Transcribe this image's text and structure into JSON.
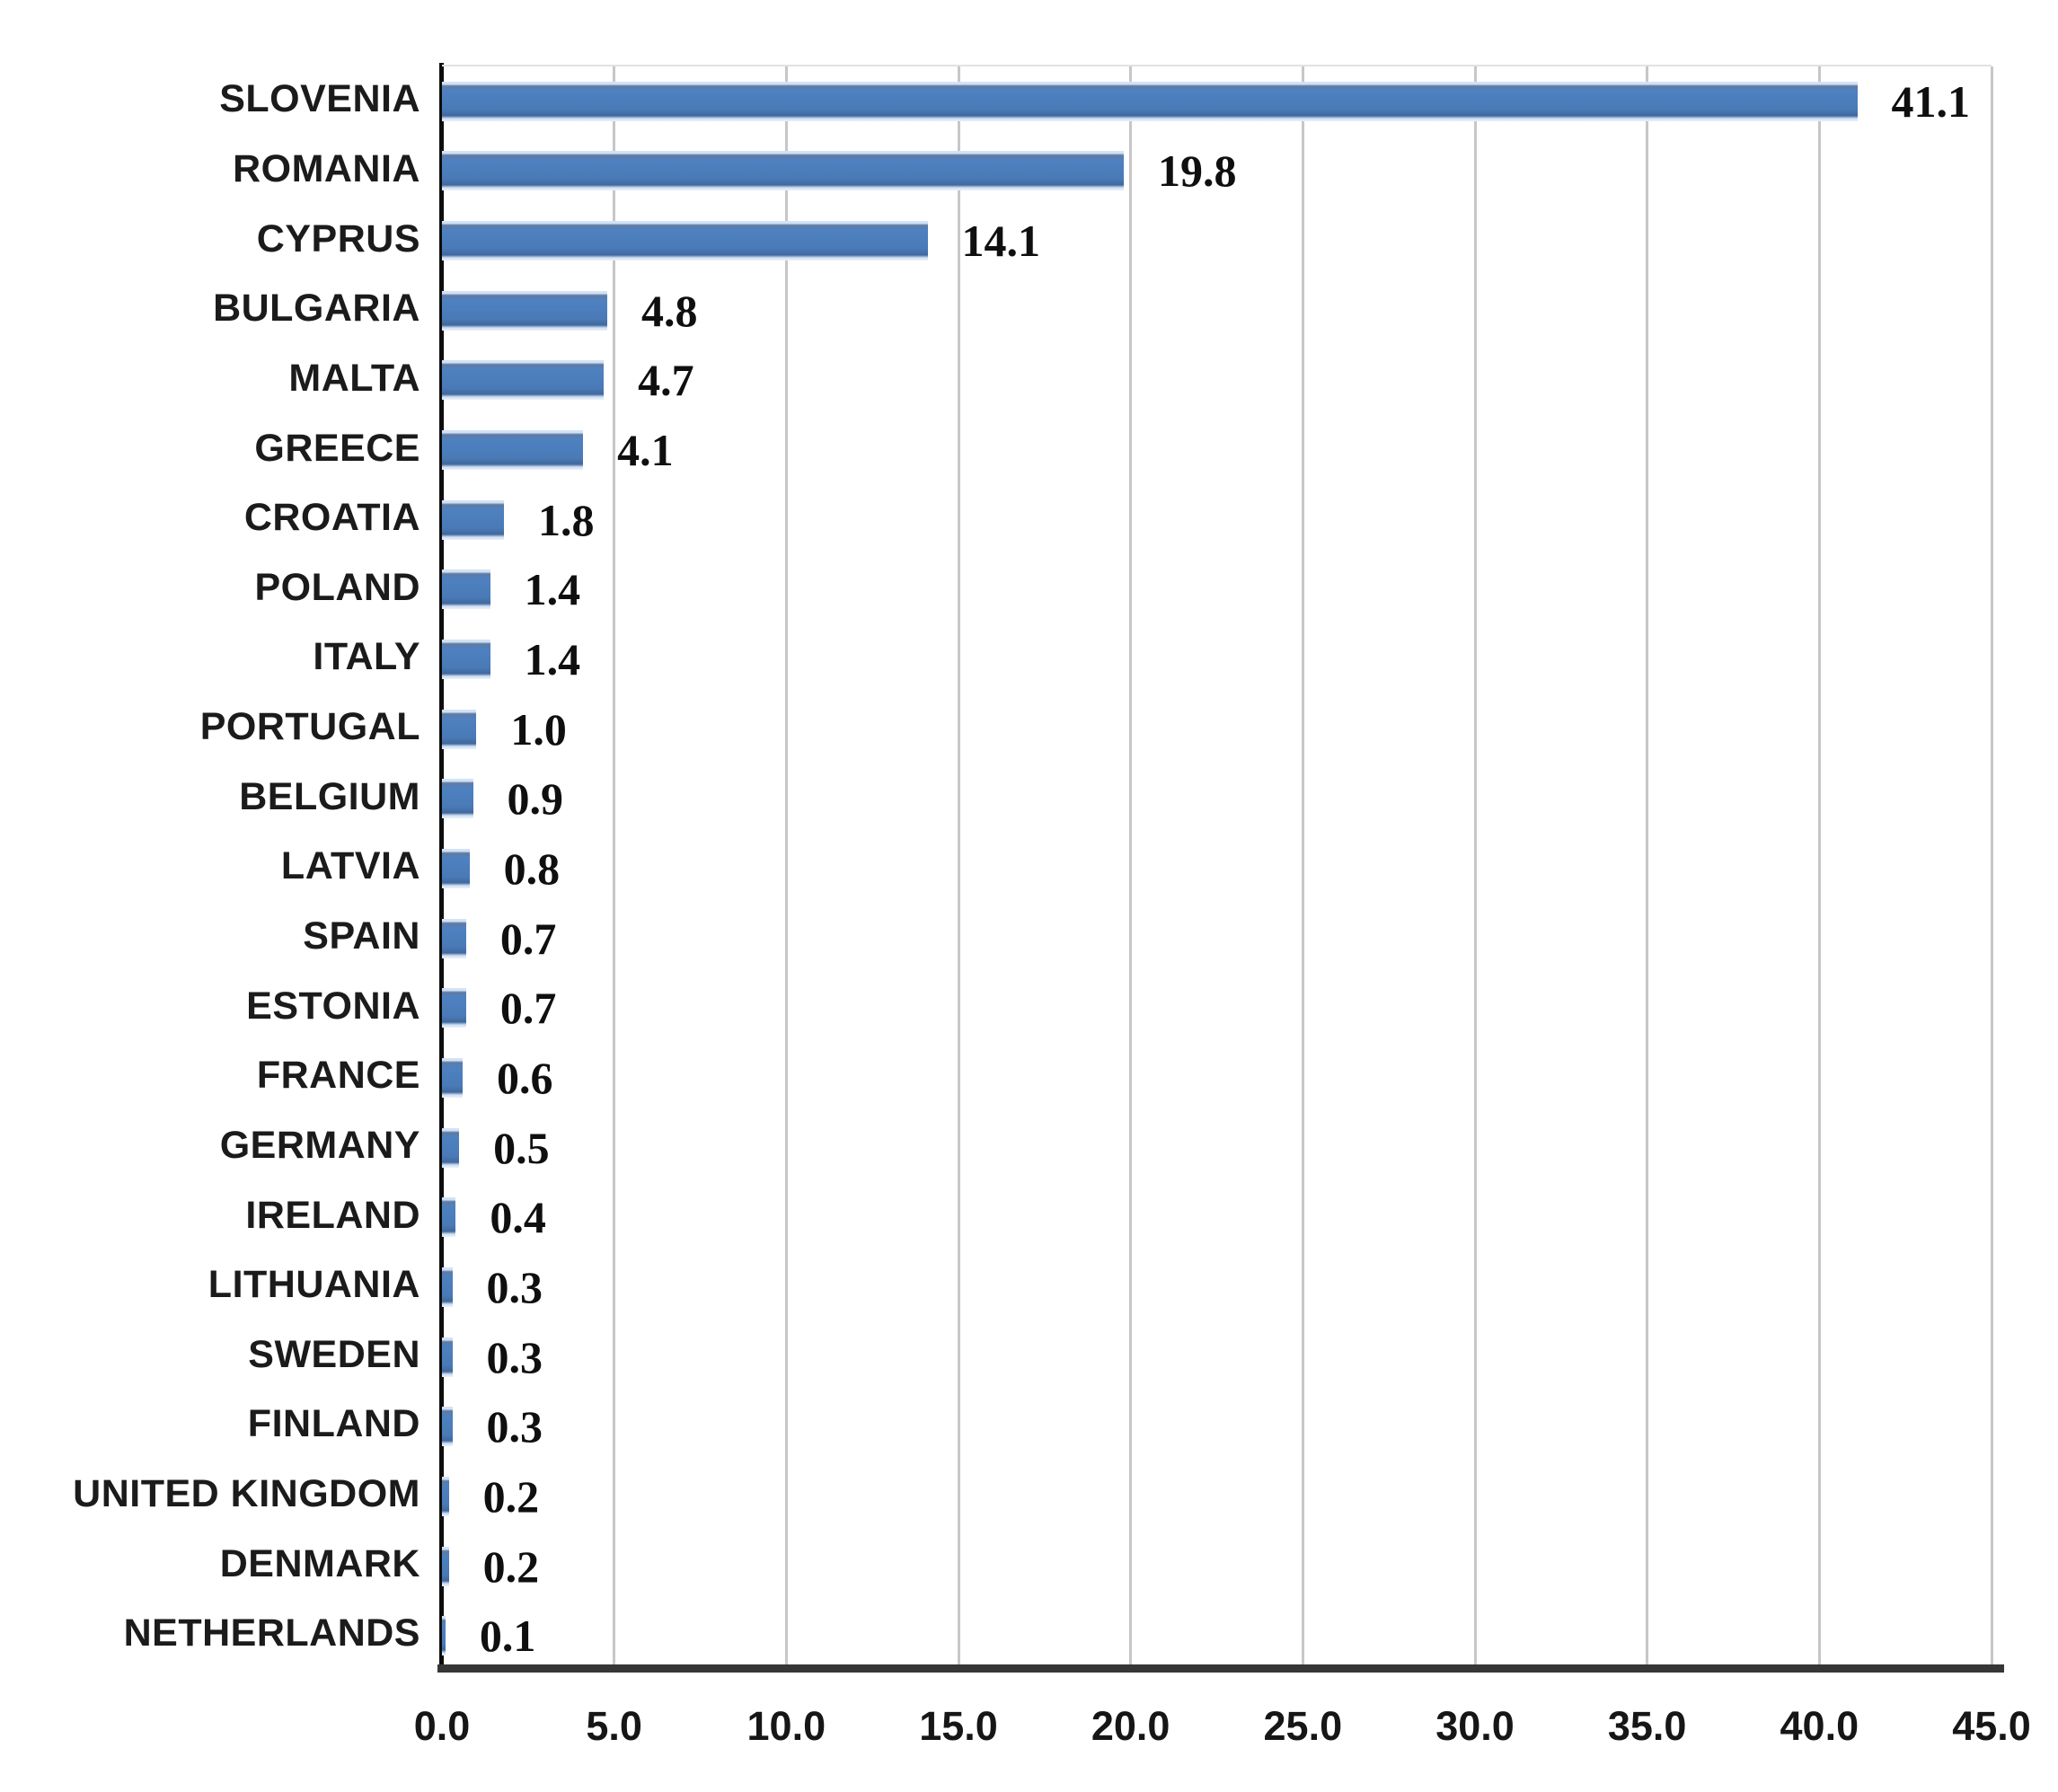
{
  "chart_data": {
    "type": "bar",
    "orientation": "horizontal",
    "title": "",
    "xlabel": "",
    "ylabel": "",
    "xlim": [
      0,
      45
    ],
    "grid": "vertical-only",
    "gridline_step": 5,
    "legend": "none",
    "bar_color": "#4a7ab8",
    "categories": [
      "SLOVENIA",
      "ROMANIA",
      "CYPRUS",
      "BULGARIA",
      "MALTA",
      "GREECE",
      "CROATIA",
      "POLAND",
      "ITALY",
      "PORTUGAL",
      "BELGIUM",
      "LATVIA",
      "SPAIN",
      "ESTONIA",
      "FRANCE",
      "GERMANY",
      "IRELAND",
      "LITHUANIA",
      "SWEDEN",
      "FINLAND",
      "UNITED KINGDOM",
      "DENMARK",
      "NETHERLANDS"
    ],
    "values": [
      41.1,
      19.8,
      14.1,
      4.8,
      4.7,
      4.1,
      1.8,
      1.4,
      1.4,
      1.0,
      0.9,
      0.8,
      0.7,
      0.7,
      0.6,
      0.5,
      0.4,
      0.3,
      0.3,
      0.3,
      0.2,
      0.2,
      0.1
    ],
    "value_labels": [
      "41.1",
      "19.8",
      "14.1",
      "4.8",
      "4.7",
      "4.1",
      "1.8",
      "1.4",
      "1.4",
      "1.0",
      "0.9",
      "0.8",
      "0.7",
      "0.7",
      "0.6",
      "0.5",
      "0.4",
      "0.3",
      "0.3",
      "0.3",
      "0.2",
      "0.2",
      "0.1"
    ],
    "xticks": [
      "0.0",
      "5.0",
      "10.0",
      "15.0",
      "20.0",
      "25.0",
      "30.0",
      "35.0",
      "40.0",
      "45.0"
    ]
  },
  "colors": {
    "bar_fill": "#4a7ab8",
    "bar_edge_light": "#d3e2f4",
    "bar_edge_dark": "#40699e",
    "gridline": "#c7c7c7",
    "axis": "#0d0d0d",
    "text": "#1b1b1b",
    "background": "#ffffff"
  }
}
